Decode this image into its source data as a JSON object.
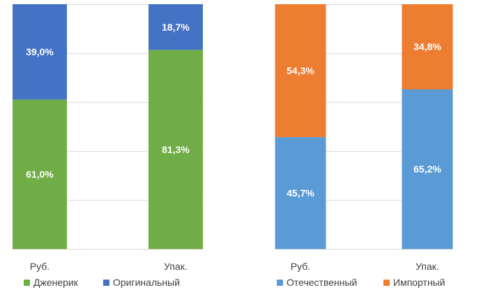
{
  "chart_data": [
    {
      "type": "bar",
      "stacked": true,
      "percent": true,
      "categories": [
        "Руб.",
        "Упак."
      ],
      "series": [
        {
          "name": "Дженерик",
          "values": [
            61.0,
            81.3
          ],
          "labels": [
            "61,0%",
            "81,3%"
          ],
          "color": "#70ad47"
        },
        {
          "name": "Оригинальный",
          "values": [
            39.0,
            18.7
          ],
          "labels": [
            "39,0%",
            "18,7%"
          ],
          "color": "#4472c4"
        }
      ],
      "ylim": [
        0,
        100
      ],
      "grid": true,
      "legend_position": "bottom"
    },
    {
      "type": "bar",
      "stacked": true,
      "percent": true,
      "categories": [
        "Руб.",
        "Упак."
      ],
      "series": [
        {
          "name": "Отечественный",
          "values": [
            45.7,
            65.2
          ],
          "labels": [
            "45,7%",
            "65,2%"
          ],
          "color": "#5b9bd5"
        },
        {
          "name": "Импортный",
          "values": [
            54.3,
            34.8
          ],
          "labels": [
            "54,3%",
            "34,8%"
          ],
          "color": "#ed7d31"
        }
      ],
      "ylim": [
        0,
        100
      ],
      "grid": true,
      "legend_position": "bottom"
    }
  ]
}
